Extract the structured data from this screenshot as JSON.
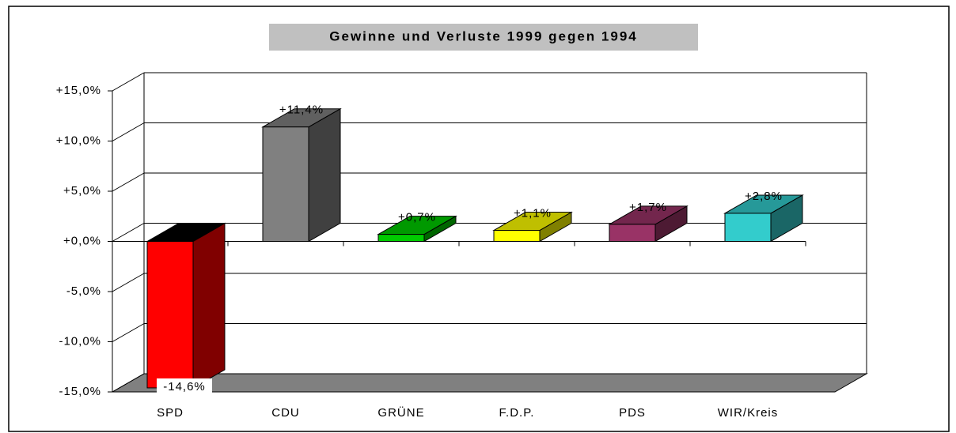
{
  "chart_data": {
    "type": "bar3d",
    "title": "Gewinne und Verluste 1999 gegen 1994",
    "categories": [
      "SPD",
      "CDU",
      "GRÜNE",
      "F.D.P.",
      "PDS",
      "WIR/Kreis"
    ],
    "values": [
      -14.6,
      11.4,
      0.7,
      1.1,
      1.7,
      2.8
    ],
    "value_labels": [
      "-14,6%",
      "+11,4%",
      "+0,7%",
      "+1,1%",
      "+1,7%",
      "+2,8%"
    ],
    "colors": [
      "#ff0000",
      "#808080",
      "#00cc00",
      "#ffff00",
      "#993366",
      "#33cccc"
    ],
    "ylim": [
      -15,
      15
    ],
    "yticks": [
      {
        "value": -15,
        "label": "-15,0%"
      },
      {
        "value": -10,
        "label": "-10,0%"
      },
      {
        "value": -5,
        "label": "-5,0%"
      },
      {
        "value": 0,
        "label": "+0,0%"
      },
      {
        "value": 5,
        "label": "+5,0%"
      },
      {
        "value": 10,
        "label": "+10,0%"
      },
      {
        "value": 15,
        "label": "+15,0%"
      }
    ],
    "grid": true
  }
}
